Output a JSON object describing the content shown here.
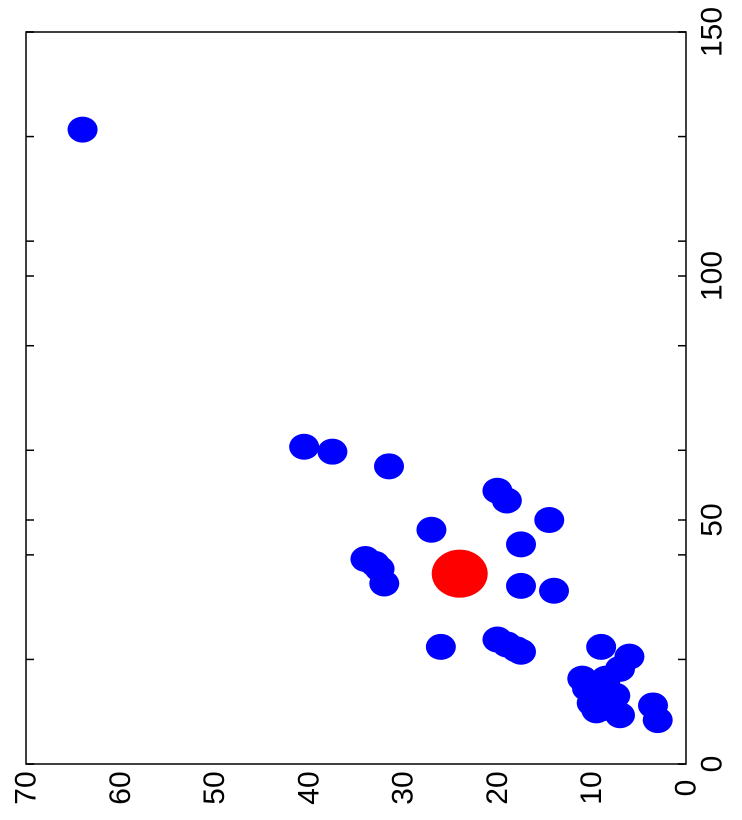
{
  "chart_data": {
    "type": "scatter",
    "title": "",
    "xlabel": "",
    "ylabel": "",
    "orientation": "rotated-90",
    "xlim": [
      0,
      70
    ],
    "ylim": [
      0,
      150
    ],
    "x_ticks": [
      "70",
      "60",
      "50",
      "40",
      "30",
      "20",
      "10",
      "0"
    ],
    "y_ticks": [
      "0",
      "50",
      "100",
      "150"
    ],
    "grid": false,
    "legend": "none",
    "series": [
      {
        "color": "#0000ff",
        "points": [
          {
            "x": 64,
            "y": 130
          },
          {
            "x": 40.5,
            "y": 65
          },
          {
            "x": 37.5,
            "y": 64
          },
          {
            "x": 31.5,
            "y": 61
          },
          {
            "x": 27,
            "y": 48
          },
          {
            "x": 34,
            "y": 42
          },
          {
            "x": 33,
            "y": 41
          },
          {
            "x": 32.5,
            "y": 40
          },
          {
            "x": 32,
            "y": 37
          },
          {
            "x": 26,
            "y": 24
          },
          {
            "x": 20,
            "y": 56
          },
          {
            "x": 19,
            "y": 54
          },
          {
            "x": 14.5,
            "y": 50
          },
          {
            "x": 17.5,
            "y": 45
          },
          {
            "x": 17.5,
            "y": 36.5
          },
          {
            "x": 14,
            "y": 35.5
          },
          {
            "x": 20,
            "y": 25.5
          },
          {
            "x": 19,
            "y": 24.5
          },
          {
            "x": 18,
            "y": 23.5
          },
          {
            "x": 17.5,
            "y": 23
          },
          {
            "x": 9,
            "y": 24
          },
          {
            "x": 6,
            "y": 22
          },
          {
            "x": 7,
            "y": 19.5
          },
          {
            "x": 11,
            "y": 17.5
          },
          {
            "x": 8.5,
            "y": 17.5
          },
          {
            "x": 10.5,
            "y": 15.5
          },
          {
            "x": 9,
            "y": 14.5
          },
          {
            "x": 7.5,
            "y": 14
          },
          {
            "x": 10,
            "y": 12.5
          },
          {
            "x": 8.5,
            "y": 11.5
          },
          {
            "x": 9.5,
            "y": 11
          },
          {
            "x": 7,
            "y": 10
          },
          {
            "x": 3.5,
            "y": 12
          },
          {
            "x": 3,
            "y": 9
          }
        ]
      },
      {
        "color": "#ff0000",
        "points": [
          {
            "x": 24,
            "y": 39
          }
        ]
      }
    ]
  }
}
